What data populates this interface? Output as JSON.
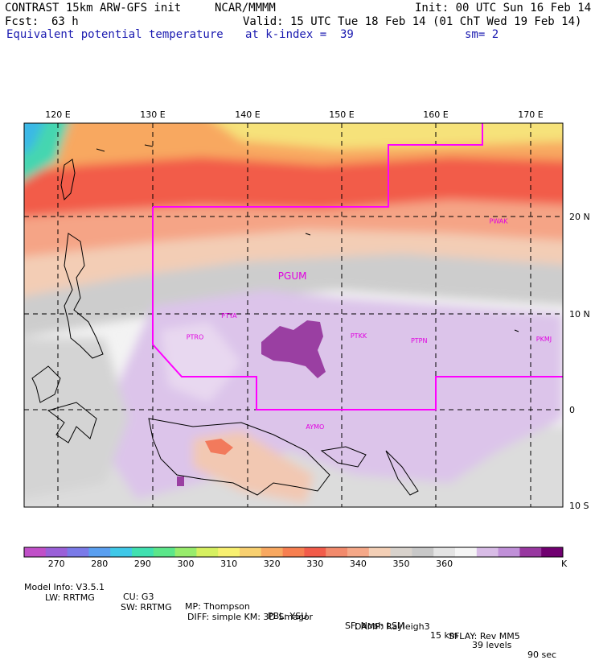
{
  "header": {
    "model_title": "CONTRAST 15km ARW-GFS init",
    "institution": "NCAR/MMMM",
    "init": "Init: 00 UTC Sun 16 Feb 14",
    "fcst_label": "Fcst:",
    "fcst_value": "63 h",
    "valid": "Valid: 15 UTC Tue 18 Feb 14 (01 ChT Wed 19 Feb 14)",
    "field": "Equivalent potential temperature",
    "level": "at k-index =  39",
    "smoothing": "sm= 2"
  },
  "map": {
    "lon_labels": [
      "120 E",
      "130 E",
      "140 E",
      "150 E",
      "160 E",
      "170 E"
    ],
    "lon_values": [
      120,
      130,
      140,
      150,
      160,
      170
    ],
    "lat_labels": [
      "20 N",
      "10 N",
      "0",
      "10 S"
    ],
    "lat_values": [
      20,
      10,
      0,
      -10
    ],
    "stations": [
      {
        "name": "PGUM",
        "lon": 144.8,
        "lat": 13.5
      },
      {
        "name": "PTYA",
        "lon": 138.1,
        "lat": 9.5
      },
      {
        "name": "PTRO",
        "lon": 134.5,
        "lat": 7.3
      },
      {
        "name": "PTKK",
        "lon": 151.8,
        "lat": 7.4
      },
      {
        "name": "PTPN",
        "lon": 158.2,
        "lat": 6.9
      },
      {
        "name": "PKMJ",
        "lon": 171.4,
        "lat": 7.1
      },
      {
        "name": "PWAK",
        "lon": 166.6,
        "lat": 19.3
      },
      {
        "name": "AYMO",
        "lon": 147.2,
        "lat": -2.0
      }
    ]
  },
  "colorbar": {
    "colors": [
      "#c04fc8",
      "#9a60d8",
      "#7a7ae8",
      "#5a9ff0",
      "#3fc8e8",
      "#40e0b0",
      "#5ce68a",
      "#98ec6c",
      "#d6f060",
      "#f8f070",
      "#f8d070",
      "#f8a860",
      "#f77f50",
      "#f25c4a",
      "#f28a6c",
      "#f5a888",
      "#f3cfb6",
      "#d8d2cc",
      "#c8c8c8",
      "#e4e4e4",
      "#f5f5f5",
      "#d8bce6",
      "#c090d8",
      "#9838a0",
      "#700070"
    ],
    "tick_labels": [
      "270",
      "280",
      "290",
      "300",
      "310",
      "320",
      "330",
      "340",
      "350",
      "360"
    ],
    "unit": "K"
  },
  "footer": {
    "line1": [
      {
        "label": "Model Info: V3.5.1"
      },
      {
        "label": "CU: G3"
      },
      {
        "label": "MP: Thompson"
      },
      {
        "label": "PBL: YSU"
      },
      {
        "label": "SF: Noah LSM"
      },
      {
        "label": "15 km"
      },
      {
        "label": "39 levels"
      },
      {
        "label": "90 sec"
      }
    ],
    "line2": [
      {
        "label": "LW: RRTMG"
      },
      {
        "label": "SW: RRTMG"
      },
      {
        "label": "DIFF: simple KM: 3D Smagor"
      },
      {
        "label": "DAMP: Rayleigh3"
      },
      {
        "label": "SFLAY: Rev MM5"
      }
    ]
  }
}
